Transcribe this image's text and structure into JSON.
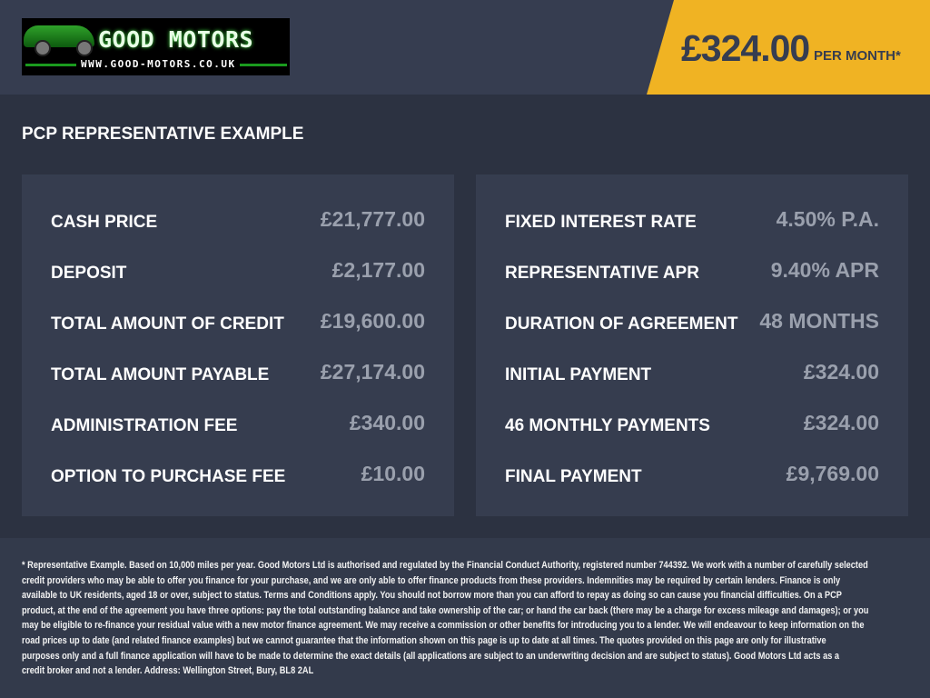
{
  "header": {
    "logo": {
      "name": "GOOD MOTORS",
      "url": "WWW.GOOD-MOTORS.CO.UK"
    },
    "price": "£324.00",
    "price_suffix": "PER MONTH*",
    "accent_color": "#f0b323"
  },
  "main": {
    "title": "PCP REPRESENTATIVE EXAMPLE",
    "left_panel": [
      {
        "label": "CASH PRICE",
        "value": "£21,777.00"
      },
      {
        "label": "DEPOSIT",
        "value": "£2,177.00"
      },
      {
        "label": "TOTAL AMOUNT OF CREDIT",
        "value": "£19,600.00"
      },
      {
        "label": "TOTAL AMOUNT PAYABLE",
        "value": "£27,174.00"
      },
      {
        "label": "ADMINISTRATION FEE",
        "value": "£340.00"
      },
      {
        "label": "OPTION TO PURCHASE FEE",
        "value": "£10.00"
      }
    ],
    "right_panel": [
      {
        "label": "FIXED INTEREST RATE",
        "value": "4.50% P.A."
      },
      {
        "label": "REPRESENTATIVE APR",
        "value": "9.40% APR"
      },
      {
        "label": "DURATION OF AGREEMENT",
        "value": "48 MONTHS"
      },
      {
        "label": "INITIAL PAYMENT",
        "value": "£324.00"
      },
      {
        "label": "46 MONTHLY PAYMENTS",
        "value": "£324.00"
      },
      {
        "label": "FINAL PAYMENT",
        "value": "£9,769.00"
      }
    ]
  },
  "footer": {
    "lines": [
      "* Representative Example. Based on 10,000 miles per year. Good Motors Ltd is authorised and regulated by the Financial Conduct Authority, registered number 744392. We work with a number of carefully selected",
      "credit providers who may be able to offer you finance for your purchase, and we are only able to offer finance products from these providers. Indemnities may be required by certain lenders. Finance is only",
      "available to UK residents, aged 18 or over, subject to status. Terms and Conditions apply. You should not borrow more than you can afford to repay as doing so can cause you financial difficulties. On a PCP",
      "product, at the end of the agreement you have three options: pay the total outstanding balance and take ownership of the car; or hand the car back (there may be a charge for excess mileage and damages); or you",
      "may be eligible to re-finance your residual value with a new motor finance agreement. We may receive a commission or other benefits for introducing you to a lender. We will endeavour to keep information on the",
      "road prices up to date (and related finance examples) but we cannot guarantee that the information shown on this page is up to date at all times. The quotes provided on this page are only for illustrative",
      "purposes only and a full finance application will have to be made to determine the exact details (all applications are subject to an underwriting decision and are subject to status). Good Motors Ltd acts as a",
      "credit broker and not a lender. Address: Wellington Street, Bury, BL8 2AL"
    ]
  }
}
